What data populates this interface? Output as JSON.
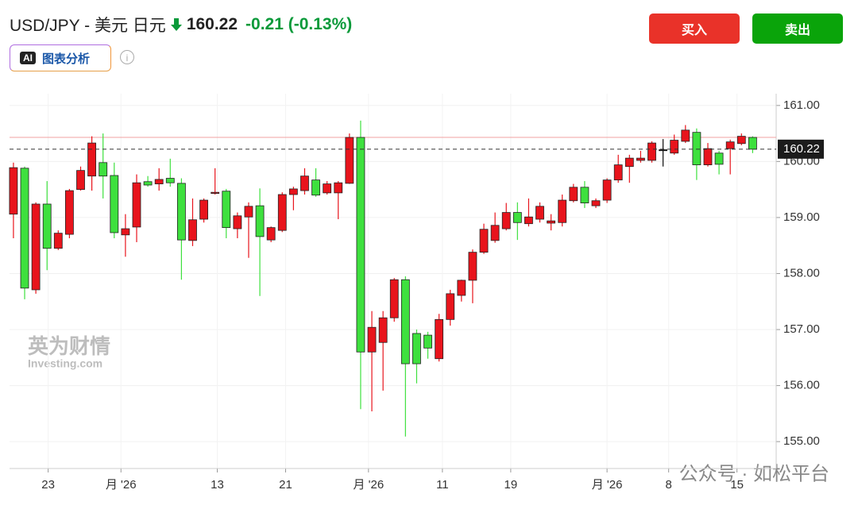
{
  "header": {
    "symbol": "USD/JPY - 美元 日元",
    "price": "160.22",
    "change": "-0.21 (-0.13%)",
    "ai_button": "图表分析",
    "ai_badge": "AI",
    "buy": "买入",
    "sell": "卖出"
  },
  "watermark": {
    "brand": "英为财情",
    "site": "Investing.com",
    "account": "公众号 · 如松平台"
  },
  "chart_data": {
    "type": "candlestick",
    "up_color": "#e8141c",
    "down_color": "#3ee03e",
    "flat_color": "#111111",
    "candles": {
      "open": [
        159.06,
        159.88,
        157.71,
        159.24,
        158.45,
        158.7,
        159.5,
        159.74,
        159.98,
        159.75,
        158.69,
        158.83,
        159.64,
        159.6,
        159.7,
        159.61,
        158.59,
        158.97,
        159.43,
        159.47,
        158.8,
        159.01,
        159.21,
        158.6,
        158.77,
        159.41,
        159.48,
        159.67,
        159.44,
        159.44,
        159.61,
        160.43,
        156.6,
        156.77,
        157.21,
        157.89,
        156.93,
        156.9,
        156.48,
        157.18,
        157.61,
        157.88,
        158.38,
        158.59,
        158.8,
        159.09,
        158.89,
        158.97,
        158.9,
        158.91,
        159.3,
        159.54,
        159.21,
        159.31,
        159.67,
        159.91,
        160.02,
        160.02,
        160.21,
        160.15,
        160.36,
        160.52,
        159.94,
        160.15,
        160.23,
        160.32,
        160.43
      ],
      "high": [
        159.98,
        159.91,
        159.27,
        159.65,
        158.77,
        159.51,
        159.91,
        160.45,
        160.5,
        159.98,
        159.06,
        159.77,
        159.74,
        159.88,
        160.05,
        159.7,
        159.34,
        159.34,
        159.88,
        159.51,
        159.09,
        159.27,
        159.52,
        158.84,
        159.45,
        159.55,
        159.88,
        159.88,
        159.65,
        159.65,
        160.5,
        160.73,
        157.33,
        157.33,
        157.92,
        157.95,
        157.0,
        156.96,
        157.28,
        157.71,
        157.89,
        158.43,
        158.89,
        159.09,
        159.26,
        159.27,
        159.34,
        159.27,
        159.06,
        159.41,
        159.6,
        159.65,
        159.34,
        159.7,
        160.12,
        160.12,
        160.19,
        160.36,
        160.4,
        160.48,
        160.65,
        160.59,
        160.33,
        160.19,
        160.39,
        160.5,
        160.45
      ],
      "low": [
        158.63,
        157.54,
        157.64,
        158.06,
        158.42,
        158.63,
        159.48,
        159.48,
        159.34,
        158.63,
        158.3,
        158.56,
        159.55,
        159.48,
        159.55,
        157.89,
        158.49,
        158.91,
        159.41,
        158.63,
        158.63,
        158.28,
        157.6,
        158.56,
        158.74,
        159.13,
        159.41,
        159.37,
        159.41,
        158.97,
        159.6,
        155.58,
        155.54,
        155.91,
        157.14,
        155.09,
        156.04,
        156.48,
        156.43,
        157.07,
        157.5,
        157.47,
        158.35,
        158.55,
        158.77,
        158.6,
        158.84,
        158.91,
        158.77,
        158.84,
        159.27,
        159.17,
        159.17,
        159.26,
        159.62,
        159.62,
        159.98,
        159.98,
        159.91,
        160.12,
        160.33,
        159.67,
        159.91,
        159.77,
        159.77,
        160.29,
        160.15
      ],
      "close": [
        159.89,
        157.74,
        159.24,
        158.45,
        158.72,
        159.48,
        159.84,
        160.33,
        159.74,
        158.73,
        158.8,
        159.62,
        159.58,
        159.68,
        159.62,
        158.6,
        158.96,
        159.31,
        159.45,
        158.82,
        159.03,
        159.2,
        158.66,
        158.82,
        159.41,
        159.51,
        159.74,
        159.4,
        159.6,
        159.62,
        160.43,
        156.6,
        157.04,
        157.21,
        157.89,
        156.39,
        156.39,
        156.67,
        157.18,
        157.64,
        157.88,
        158.38,
        158.79,
        158.86,
        159.09,
        158.91,
        159.01,
        159.2,
        158.94,
        159.31,
        159.54,
        159.26,
        159.3,
        159.67,
        159.94,
        160.06,
        160.06,
        160.33,
        160.21,
        160.38,
        160.56,
        159.94,
        160.23,
        159.95,
        160.35,
        160.45,
        160.22
      ]
    },
    "xlim": [
      -1.2,
      68.1
    ],
    "xticks": [
      {
        "value": 3.1,
        "label": "23"
      },
      {
        "value": 9.6,
        "label": "月 '26"
      },
      {
        "value": 18.2,
        "label": "13"
      },
      {
        "value": 24.3,
        "label": "21"
      },
      {
        "value": 31.7,
        "label": "月 '26"
      },
      {
        "value": 38.3,
        "label": "11"
      },
      {
        "value": 44.4,
        "label": "19"
      },
      {
        "value": 53.0,
        "label": "月 '26"
      },
      {
        "value": 58.5,
        "label": "8"
      },
      {
        "value": 64.6,
        "label": "15"
      }
    ],
    "ylim": [
      154.52,
      161.21
    ],
    "yticks": [
      {
        "value": 155,
        "label": "155.00"
      },
      {
        "value": 156,
        "label": "156.00"
      },
      {
        "value": 157,
        "label": "157.00"
      },
      {
        "value": 158,
        "label": "158.00"
      },
      {
        "value": 159,
        "label": "159.00"
      },
      {
        "value": 160,
        "label": "160.00"
      },
      {
        "value": 161,
        "label": "161.00"
      }
    ],
    "grid": true,
    "high_line": 160.43,
    "last_price": {
      "value": 160.22,
      "label": "160.22"
    }
  }
}
